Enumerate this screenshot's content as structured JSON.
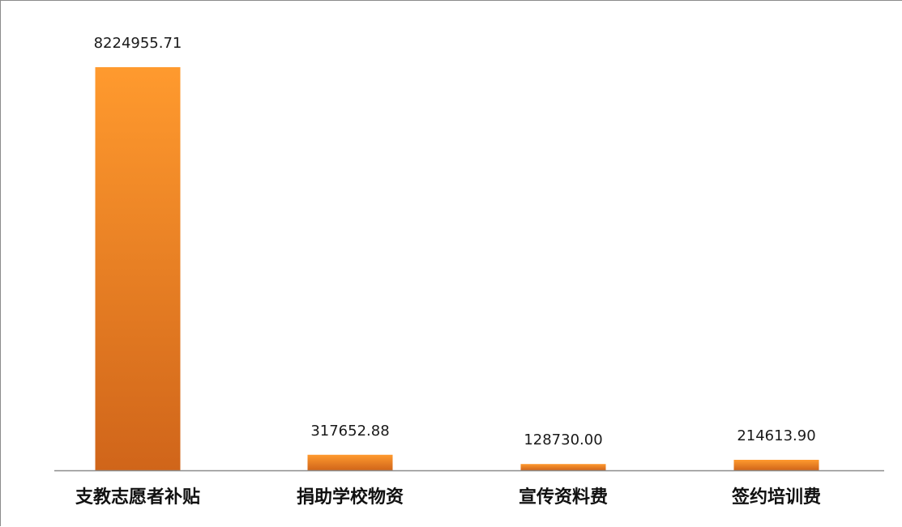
{
  "chart_data": {
    "type": "bar",
    "title": "",
    "xlabel": "",
    "ylabel": "",
    "categories": [
      "支教志愿者补贴",
      "捐助学校物资",
      "宣传资料费",
      "签约培训费"
    ],
    "values": [
      8224955.71,
      317652.88,
      128730.0,
      214613.9
    ],
    "value_labels": [
      "8224955.71",
      "317652.88",
      "128730.00",
      "214613.90"
    ],
    "ylim": [
      0,
      8224955.71
    ],
    "grid": false,
    "legend": "none",
    "colors": {
      "bar_top": "#ff9a2e",
      "bar_bottom": "#d0651a",
      "axis": "#8c8c8c",
      "frame": "#8c8c8c"
    }
  }
}
